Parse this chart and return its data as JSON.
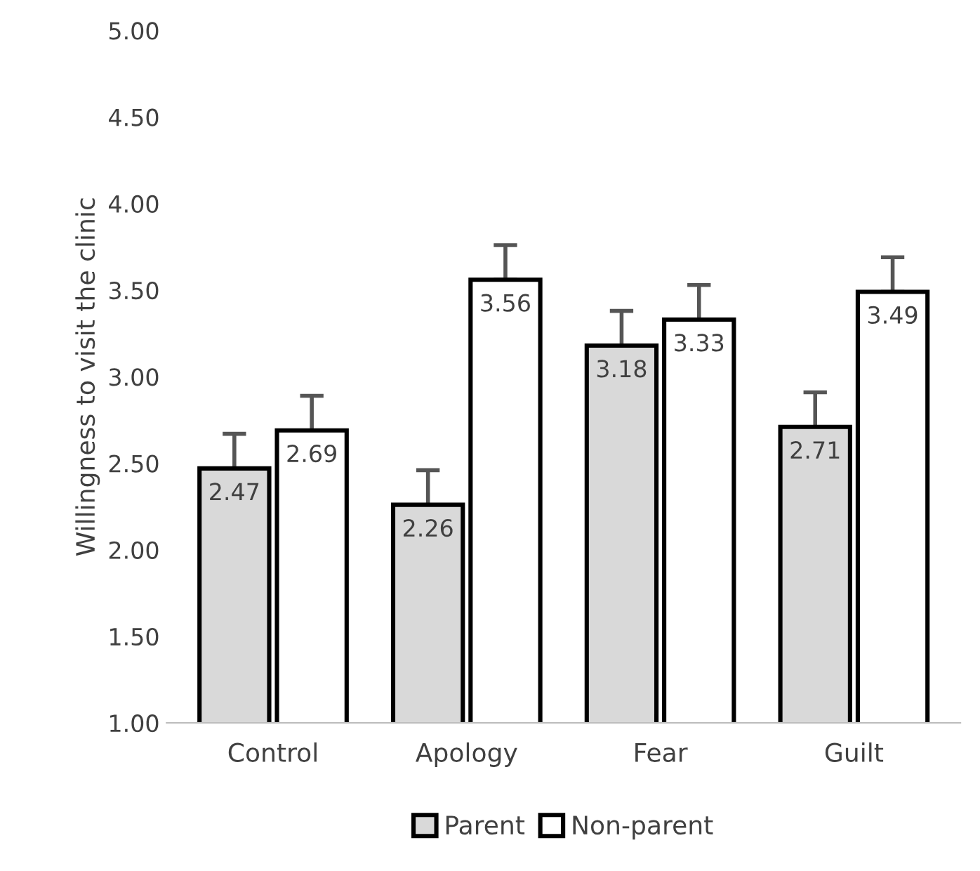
{
  "chart_data": {
    "type": "bar",
    "ylabel": "Willingness to visit the clinic",
    "categories": [
      "Control",
      "Apology",
      "Fear",
      "Guilt"
    ],
    "series": [
      {
        "name": "Parent",
        "color": "#d9d9d9",
        "values": [
          2.47,
          2.26,
          3.18,
          2.71
        ],
        "errors": [
          0.2,
          0.2,
          0.2,
          0.2
        ]
      },
      {
        "name": "Non-parent",
        "color": "#ffffff",
        "values": [
          2.69,
          3.56,
          3.33,
          3.49
        ],
        "errors": [
          0.2,
          0.2,
          0.2,
          0.2
        ]
      }
    ],
    "ylim": [
      1.0,
      5.0
    ],
    "yticks": [
      {
        "value": 1.0,
        "label": "1.00"
      },
      {
        "value": 1.5,
        "label": "1.50"
      },
      {
        "value": 2.0,
        "label": "2.00"
      },
      {
        "value": 2.5,
        "label": "2.50"
      },
      {
        "value": 3.0,
        "label": "3.00"
      },
      {
        "value": 3.5,
        "label": "3.50"
      },
      {
        "value": 4.0,
        "label": "4.00"
      },
      {
        "value": 4.5,
        "label": "4.50"
      },
      {
        "value": 5.0,
        "label": "5.00"
      }
    ],
    "data_labels": true,
    "grid": false,
    "legend": "bottom"
  }
}
